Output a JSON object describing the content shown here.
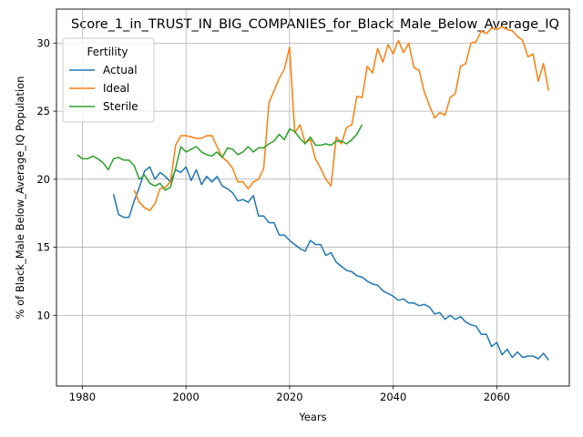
{
  "chart_data": {
    "type": "line",
    "title": "Score_1_in_TRUST_IN_BIG_COMPANIES_for_Black_Male_Below_Average_IQ",
    "xlabel": "Years",
    "ylabel": "% of Black_Male Below_Average_IQ Population",
    "xlim": [
      1975,
      2074
    ],
    "ylim": [
      4.8,
      32.5
    ],
    "xticks": [
      1980,
      2000,
      2020,
      2040,
      2060
    ],
    "yticks": [
      10,
      15,
      20,
      25,
      30
    ],
    "grid": true,
    "legend": {
      "title": "Fertility",
      "position": "top-left"
    },
    "colors": {
      "Actual": "#1f77b4",
      "Ideal": "#ff7f0e",
      "Sterile": "#2ca02c"
    },
    "series": [
      {
        "name": "Actual",
        "x": [
          1986,
          1987,
          1988,
          1989,
          1990,
          1991,
          1992,
          1993,
          1994,
          1995,
          1996,
          1997,
          1998,
          1999,
          2000,
          2001,
          2002,
          2003,
          2004,
          2005,
          2006,
          2007,
          2008,
          2009,
          2010,
          2011,
          2012,
          2013,
          2014,
          2015,
          2016,
          2017,
          2018,
          2019,
          2020,
          2021,
          2022,
          2023,
          2024,
          2025,
          2026,
          2027,
          2028,
          2029,
          2030,
          2031,
          2032,
          2033,
          2034,
          2035,
          2036,
          2037,
          2038,
          2039,
          2040,
          2041,
          2042,
          2043,
          2044,
          2045,
          2046,
          2047,
          2048,
          2049,
          2050,
          2051,
          2052,
          2053,
          2054,
          2055,
          2056,
          2057,
          2058,
          2059,
          2060,
          2061,
          2062,
          2063,
          2064,
          2065,
          2066,
          2067,
          2068,
          2069,
          2070
        ],
        "values": [
          18.9,
          17.4,
          17.2,
          17.2,
          18.4,
          19.4,
          20.6,
          20.9,
          20.0,
          20.5,
          20.2,
          19.8,
          20.7,
          20.5,
          20.9,
          19.9,
          20.7,
          19.6,
          20.2,
          19.8,
          20.2,
          19.5,
          19.3,
          19.0,
          18.4,
          18.5,
          18.3,
          18.8,
          17.3,
          17.3,
          16.8,
          16.8,
          15.9,
          15.9,
          15.5,
          15.2,
          14.9,
          14.7,
          15.5,
          15.2,
          15.2,
          14.4,
          14.6,
          13.9,
          13.6,
          13.3,
          13.2,
          12.9,
          12.8,
          12.5,
          12.3,
          12.2,
          11.8,
          11.6,
          11.4,
          11.1,
          11.2,
          10.9,
          10.9,
          10.7,
          10.8,
          10.6,
          10.1,
          10.2,
          9.7,
          10.0,
          9.7,
          9.9,
          9.5,
          9.3,
          9.2,
          8.6,
          8.6,
          7.7,
          8.0,
          7.1,
          7.5,
          6.9,
          7.3,
          6.9,
          7.0,
          7.0,
          6.8,
          7.2,
          6.7
        ]
      },
      {
        "name": "Ideal",
        "x": [
          1990,
          1991,
          1992,
          1993,
          1994,
          1995,
          1996,
          1997,
          1998,
          1999,
          2000,
          2001,
          2002,
          2003,
          2004,
          2005,
          2006,
          2007,
          2008,
          2009,
          2010,
          2011,
          2012,
          2013,
          2014,
          2015,
          2016,
          2017,
          2018,
          2019,
          2020,
          2021,
          2022,
          2023,
          2024,
          2025,
          2026,
          2027,
          2028,
          2029,
          2030,
          2031,
          2032,
          2033,
          2034,
          2035,
          2036,
          2037,
          2038,
          2039,
          2040,
          2041,
          2042,
          2043,
          2044,
          2045,
          2046,
          2047,
          2048,
          2049,
          2050,
          2051,
          2052,
          2053,
          2054,
          2055,
          2056,
          2057,
          2058,
          2059,
          2060,
          2061,
          2062,
          2063,
          2064,
          2065,
          2066,
          2067,
          2068,
          2069,
          2070
        ],
        "values": [
          19.2,
          18.3,
          17.9,
          17.7,
          18.2,
          19.3,
          19.4,
          19.8,
          22.5,
          23.2,
          23.2,
          23.1,
          23.0,
          23.0,
          23.2,
          23.2,
          22.4,
          21.6,
          21.3,
          20.8,
          19.8,
          19.8,
          19.3,
          19.8,
          20.0,
          20.8,
          25.6,
          26.5,
          27.4,
          28.1,
          29.7,
          23.4,
          24.0,
          22.7,
          22.9,
          21.5,
          20.8,
          20.0,
          19.5,
          23.1,
          22.6,
          23.8,
          24.0,
          26.1,
          26.0,
          28.3,
          27.8,
          29.6,
          28.6,
          29.9,
          29.2,
          30.2,
          29.3,
          30.0,
          28.2,
          28.0,
          26.4,
          25.4,
          24.5,
          24.9,
          24.7,
          26.0,
          26.3,
          28.3,
          28.5,
          30.0,
          30.1,
          30.9,
          30.7,
          31.1,
          31.0,
          31.2,
          31.0,
          30.9,
          30.5,
          30.2,
          29.0,
          29.2,
          27.2,
          28.5,
          26.5
        ]
      },
      {
        "name": "Sterile",
        "x": [
          1979,
          1980,
          1981,
          1982,
          1983,
          1984,
          1985,
          1986,
          1987,
          1988,
          1989,
          1990,
          1991,
          1992,
          1993,
          1994,
          1995,
          1996,
          1997,
          1998,
          1999,
          2000,
          2001,
          2002,
          2003,
          2004,
          2005,
          2006,
          2007,
          2008,
          2009,
          2010,
          2011,
          2012,
          2013,
          2014,
          2015,
          2016,
          2017,
          2018,
          2019,
          2020,
          2021,
          2022,
          2023,
          2024,
          2025,
          2026,
          2027,
          2028,
          2029,
          2030,
          2031,
          2032,
          2033,
          2034
        ],
        "values": [
          21.8,
          21.5,
          21.5,
          21.7,
          21.5,
          21.2,
          20.7,
          21.5,
          21.6,
          21.4,
          21.4,
          21.0,
          20.0,
          20.3,
          19.7,
          19.5,
          19.7,
          19.2,
          19.4,
          20.8,
          22.4,
          22.0,
          22.2,
          22.4,
          22.0,
          21.8,
          21.7,
          22.0,
          21.6,
          22.3,
          22.2,
          21.8,
          22.0,
          22.4,
          22.0,
          22.3,
          22.3,
          22.6,
          22.8,
          23.3,
          22.9,
          23.7,
          23.5,
          23.0,
          22.6,
          23.1,
          22.5,
          22.5,
          22.6,
          22.5,
          22.8,
          22.8,
          22.6,
          22.9,
          23.3,
          24.0
        ]
      }
    ]
  }
}
